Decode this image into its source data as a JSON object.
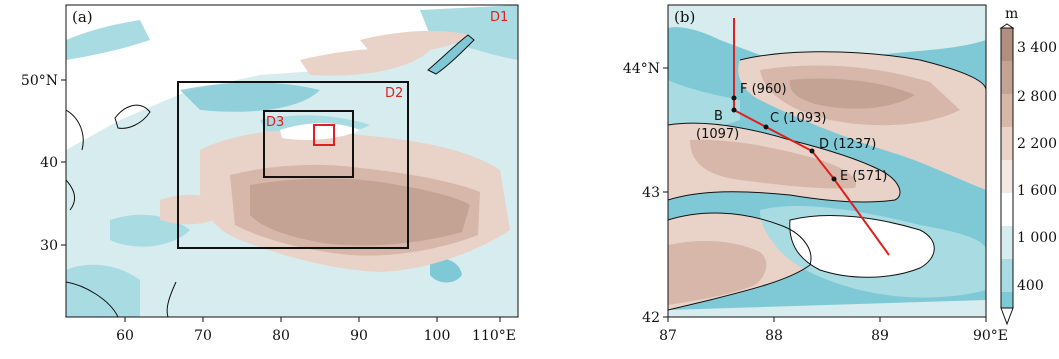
{
  "colors": {
    "land_white": "#ffffff",
    "land_pale": "#d6ecef",
    "land_light": "#a9dbe3",
    "land_cyan": "#7fc9d6",
    "high_light": "#e9d2c8",
    "high_mid": "#d7b7a9",
    "high_dark": "#c4a394",
    "domain_outer": "#111111",
    "domain_d3": "#e02020",
    "transect": "#e02020"
  },
  "panel_a": {
    "label": "(a)",
    "x_ticks": [
      "60",
      "70",
      "80",
      "90",
      "100",
      "110°E"
    ],
    "y_ticks": [
      "50°N",
      "40",
      "30"
    ],
    "domains": [
      {
        "name": "D1",
        "color": "#e02020"
      },
      {
        "name": "D2",
        "color": "#e02020"
      },
      {
        "name": "D3",
        "color": "#e02020"
      }
    ]
  },
  "panel_b": {
    "label": "(b)",
    "x_ticks": [
      "87",
      "88",
      "89",
      "90°E"
    ],
    "y_ticks": [
      "44°N",
      "43",
      "42"
    ],
    "points": [
      {
        "id": "F",
        "text": "F (960)"
      },
      {
        "id": "B",
        "text": "B"
      },
      {
        "id": "B_elev",
        "text": "(1097)"
      },
      {
        "id": "C",
        "text": "C (1093)"
      },
      {
        "id": "D",
        "text": "D (1237)"
      },
      {
        "id": "E",
        "text": "E (571)"
      }
    ]
  },
  "colorbar": {
    "unit": "m",
    "labels": [
      "3 400",
      "2 800",
      "2 200",
      "1 600",
      "1 000",
      "400"
    ],
    "colors": [
      "#ffffff",
      "#7fc9d6",
      "#a9dbe3",
      "#d6ecef",
      "#ffffff",
      "#e9d2c8",
      "#d7b7a9",
      "#c4a394",
      "#b08f80"
    ]
  }
}
